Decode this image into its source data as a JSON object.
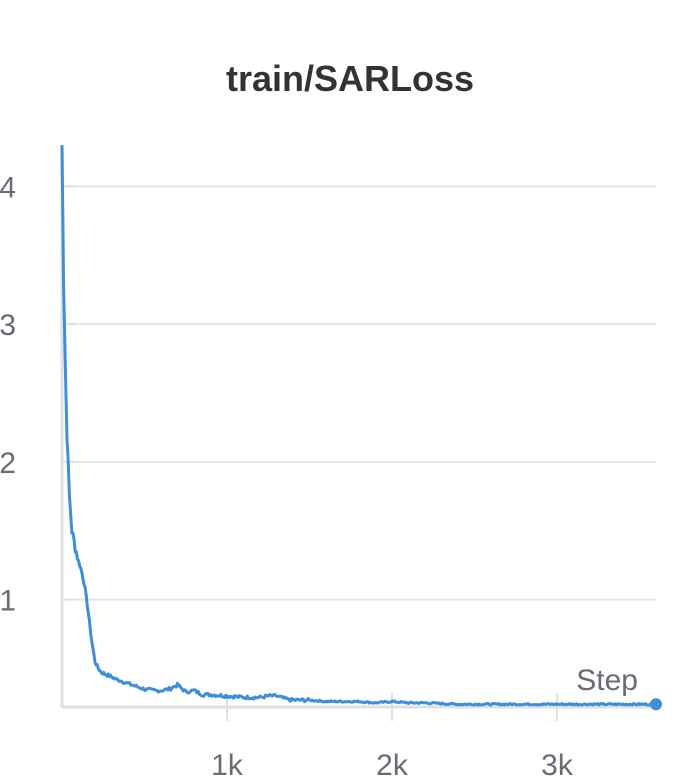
{
  "chart_data": {
    "type": "line",
    "title": "train/SARLoss",
    "xlabel": "Step",
    "ylabel": "",
    "xlim": [
      0,
      3600
    ],
    "ylim": [
      0.22,
      4.3
    ],
    "x_ticks": [
      {
        "value": 1000,
        "label": "1k"
      },
      {
        "value": 2000,
        "label": "2k"
      },
      {
        "value": 3000,
        "label": "3k"
      }
    ],
    "y_ticks": [
      {
        "value": 1,
        "label": "1"
      },
      {
        "value": 2,
        "label": "2"
      },
      {
        "value": 3,
        "label": "3"
      },
      {
        "value": 4,
        "label": "4"
      }
    ],
    "grid": true,
    "series_color": "#3d8fd9",
    "series": [
      {
        "x": [
          0,
          10,
          20,
          30,
          45,
          60,
          80,
          100,
          120,
          140,
          160,
          180,
          200,
          220,
          240,
          260,
          280,
          300,
          330,
          360,
          400,
          450,
          500,
          550,
          600,
          650,
          700,
          720,
          750,
          800,
          850,
          900,
          1000,
          1100,
          1200,
          1250,
          1300,
          1350,
          1400,
          1500,
          1600,
          1700,
          1800,
          1900,
          2000,
          2100,
          2200,
          2400,
          2600,
          2800,
          3000,
          3200,
          3400,
          3600
        ],
        "y": [
          4.3,
          3.3,
          2.7,
          2.2,
          1.75,
          1.5,
          1.38,
          1.28,
          1.2,
          1.08,
          0.9,
          0.7,
          0.55,
          0.5,
          0.47,
          0.46,
          0.45,
          0.44,
          0.42,
          0.41,
          0.39,
          0.37,
          0.35,
          0.34,
          0.34,
          0.35,
          0.38,
          0.36,
          0.33,
          0.34,
          0.31,
          0.31,
          0.3,
          0.29,
          0.29,
          0.3,
          0.3,
          0.28,
          0.27,
          0.27,
          0.26,
          0.26,
          0.26,
          0.25,
          0.26,
          0.25,
          0.25,
          0.24,
          0.24,
          0.24,
          0.24,
          0.24,
          0.24,
          0.24
        ]
      }
    ]
  }
}
